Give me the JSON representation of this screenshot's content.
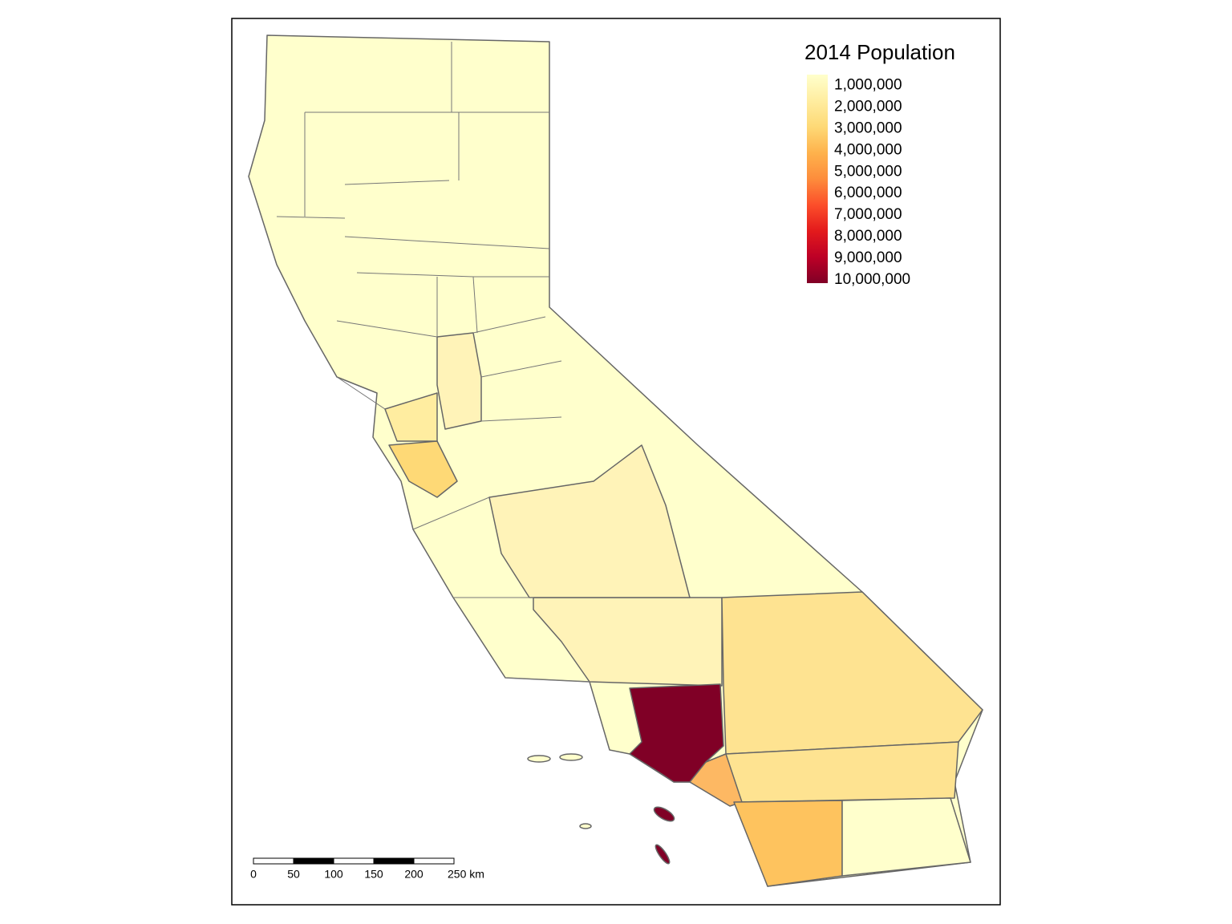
{
  "legend": {
    "title": "2014 Population",
    "lim": [
      500000,
      10150000
    ],
    "ticks": [
      {
        "value": 1000000,
        "label": "1,000,000"
      },
      {
        "value": 2000000,
        "label": "2,000,000"
      },
      {
        "value": 3000000,
        "label": "3,000,000"
      },
      {
        "value": 4000000,
        "label": "4,000,000"
      },
      {
        "value": 5000000,
        "label": "5,000,000"
      },
      {
        "value": 6000000,
        "label": "6,000,000"
      },
      {
        "value": 7000000,
        "label": "7,000,000"
      },
      {
        "value": 8000000,
        "label": "8,000,000"
      },
      {
        "value": 9000000,
        "label": "9,000,000"
      },
      {
        "value": 10000000,
        "label": "10,000,000"
      }
    ],
    "colors": [
      "#ffffcc",
      "#ffeda0",
      "#fed976",
      "#feb24c",
      "#fd8d3c",
      "#fc4e2a",
      "#e31a1c",
      "#bd0026",
      "#800026"
    ]
  },
  "scale_bar": {
    "ticks": [
      0,
      50,
      100,
      150,
      200,
      {
        "value": 250,
        "label": "250 km"
      }
    ]
  }
}
